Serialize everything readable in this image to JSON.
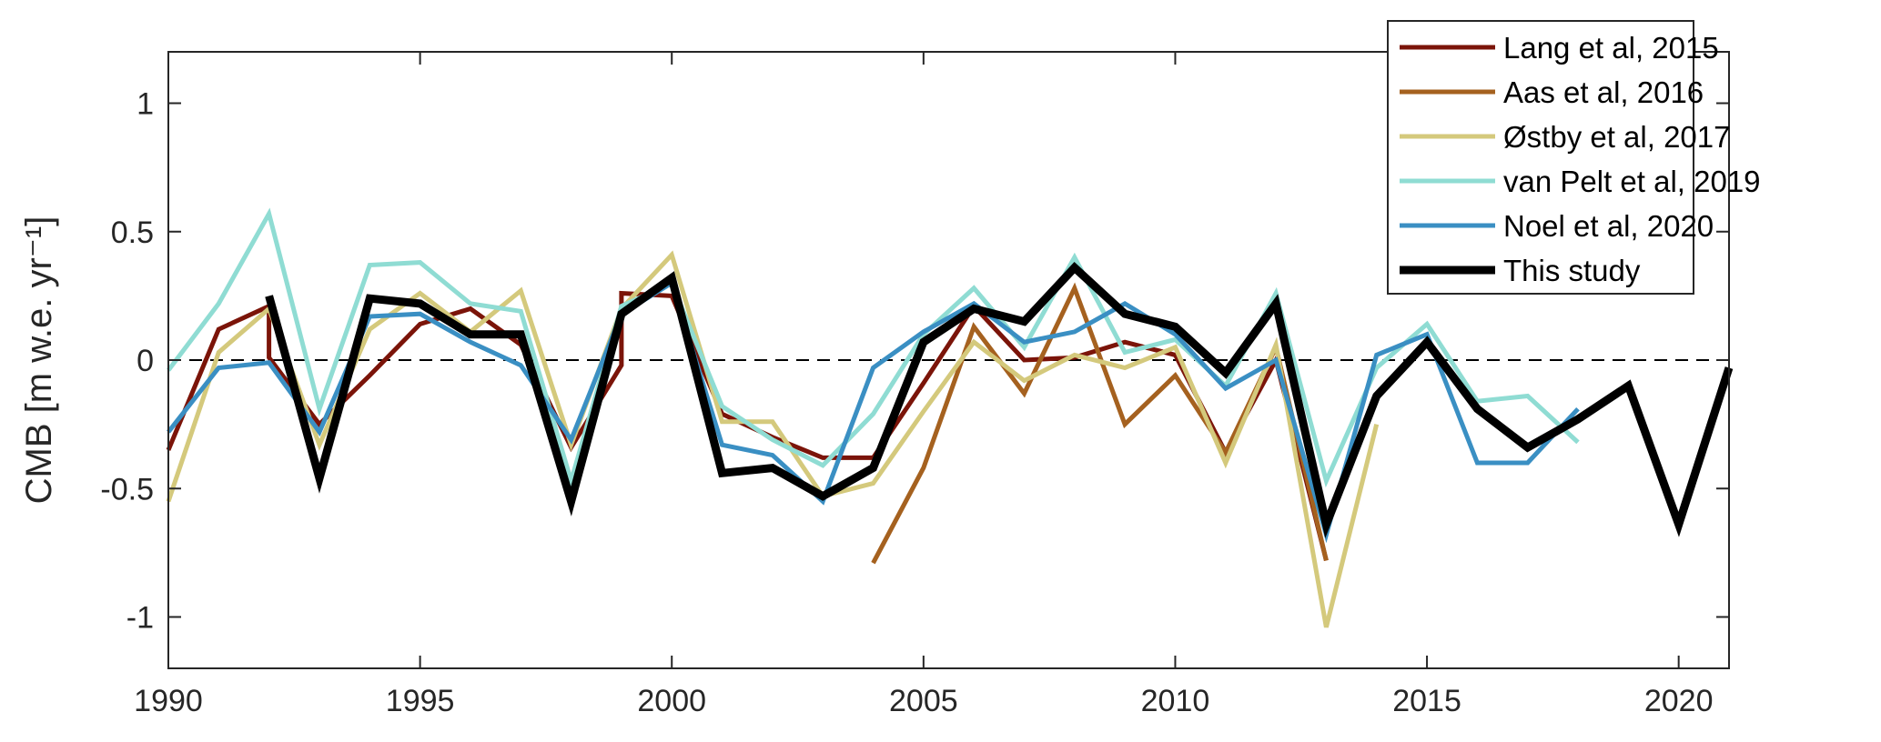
{
  "chart_data": {
    "type": "line",
    "title": "",
    "xlabel": "",
    "ylabel": "CMB [m w.e. yr⁻¹]",
    "xlim": [
      1990,
      2021
    ],
    "ylim": [
      -1.2,
      1.2
    ],
    "xticks": [
      1990,
      1995,
      2000,
      2005,
      2010,
      2015,
      2020
    ],
    "xtick_labels": [
      "1990",
      "1995",
      "2000",
      "2005",
      "2010",
      "2015",
      "2020"
    ],
    "yticks": [
      1,
      0.5,
      0,
      -0.5,
      -1
    ],
    "ytick_labels": [
      "1",
      "0.5",
      "0",
      "-0.5",
      "-1"
    ],
    "grid": false,
    "zero_line": {
      "y": 0,
      "style": "dashed",
      "color": "#000000"
    },
    "legend_position": "top-right",
    "series": [
      {
        "name": "Lang et al, 2015",
        "color": "#7b1409",
        "width": 5,
        "x": [
          1990,
          1991,
          1992,
          1992,
          1993,
          1994,
          1995,
          1996,
          1997,
          1998,
          1999,
          1999,
          2000,
          2001,
          2002,
          2003,
          2004,
          2005,
          2006,
          2007,
          2008,
          2009,
          2010,
          2011,
          2012,
          2013
        ],
        "y": [
          -0.35,
          0.12,
          0.21,
          0.01,
          -0.25,
          -0.06,
          0.14,
          0.2,
          0.06,
          -0.34,
          -0.02,
          0.26,
          0.25,
          -0.21,
          -0.3,
          -0.38,
          -0.38,
          -0.09,
          0.21,
          0.0,
          0.01,
          0.07,
          0.02,
          -0.36,
          0.0,
          -0.78
        ]
      },
      {
        "name": "Aas et al, 2016",
        "color": "#a5611f",
        "width": 5,
        "x": [
          2004,
          2005,
          2006,
          2007,
          2008,
          2009,
          2010,
          2011,
          2012,
          2013
        ],
        "y": [
          -0.79,
          -0.42,
          0.13,
          -0.13,
          0.28,
          -0.25,
          -0.06,
          -0.36,
          0.05,
          -0.78
        ]
      },
      {
        "name": "Østby et al, 2017",
        "color": "#d4c97c",
        "width": 5,
        "x": [
          1990,
          1991,
          1992,
          1993,
          1994,
          1995,
          1996,
          1997,
          1998,
          1999,
          2000,
          2001,
          2002,
          2003,
          2004,
          2005,
          2006,
          2007,
          2008,
          2009,
          2010,
          2011,
          2012,
          2013,
          2014
        ],
        "y": [
          -0.55,
          0.03,
          0.2,
          -0.33,
          0.12,
          0.26,
          0.11,
          0.27,
          -0.33,
          0.2,
          0.41,
          -0.24,
          -0.24,
          -0.53,
          -0.48,
          -0.2,
          0.07,
          -0.08,
          0.02,
          -0.03,
          0.05,
          -0.4,
          0.06,
          -1.04,
          -0.25
        ]
      },
      {
        "name": "van Pelt et al, 2019",
        "color": "#8fdcd3",
        "width": 5,
        "x": [
          1990,
          1991,
          1992,
          1993,
          1994,
          1995,
          1996,
          1997,
          1998,
          1999,
          2000,
          2001,
          2002,
          2003,
          2004,
          2005,
          2006,
          2007,
          2008,
          2009,
          2010,
          2011,
          2012,
          2013,
          2014,
          2015,
          2016,
          2017,
          2018
        ],
        "y": [
          -0.04,
          0.22,
          0.57,
          -0.19,
          0.37,
          0.38,
          0.22,
          0.19,
          -0.47,
          0.21,
          0.3,
          -0.18,
          -0.31,
          -0.41,
          -0.21,
          0.1,
          0.28,
          0.05,
          0.4,
          0.03,
          0.08,
          -0.1,
          0.26,
          -0.47,
          -0.03,
          0.14,
          -0.16,
          -0.14,
          -0.32
        ]
      },
      {
        "name": "Noel et al, 2020",
        "color": "#3a8fc3",
        "width": 5,
        "x": [
          1990,
          1991,
          1992,
          1993,
          1994,
          1995,
          1996,
          1997,
          1998,
          1999,
          2000,
          2001,
          2002,
          2003,
          2004,
          2005,
          2006,
          2007,
          2008,
          2009,
          2010,
          2011,
          2012,
          2013,
          2014,
          2015,
          2016,
          2017,
          2018
        ],
        "y": [
          -0.28,
          -0.03,
          -0.01,
          -0.28,
          0.17,
          0.18,
          0.07,
          -0.02,
          -0.31,
          0.18,
          0.3,
          -0.33,
          -0.37,
          -0.55,
          -0.03,
          0.11,
          0.22,
          0.07,
          0.11,
          0.22,
          0.1,
          -0.11,
          0.0,
          -0.68,
          0.02,
          0.1,
          -0.4,
          -0.4,
          -0.19
        ]
      },
      {
        "name": "This study",
        "color": "#000000",
        "width": 9,
        "x": [
          1992,
          1993,
          1994,
          1995,
          1996,
          1997,
          1998,
          1999,
          2000,
          2001,
          2002,
          2003,
          2004,
          2005,
          2006,
          2007,
          2008,
          2009,
          2010,
          2011,
          2012,
          2013,
          2014,
          2015,
          2016,
          2017,
          2018,
          2019,
          2020,
          2021
        ],
        "y": [
          0.25,
          -0.46,
          0.24,
          0.22,
          0.1,
          0.1,
          -0.55,
          0.18,
          0.32,
          -0.44,
          -0.42,
          -0.53,
          -0.42,
          0.07,
          0.2,
          0.15,
          0.36,
          0.18,
          0.13,
          -0.05,
          0.22,
          -0.64,
          -0.14,
          0.07,
          -0.19,
          -0.34,
          -0.23,
          -0.1,
          -0.64,
          -0.03
        ]
      }
    ]
  }
}
